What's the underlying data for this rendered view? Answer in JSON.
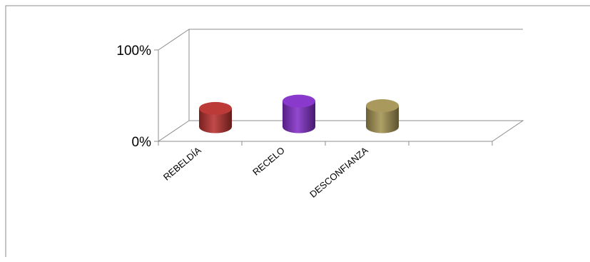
{
  "chart_data": {
    "type": "bar",
    "style": "3d-cylinder",
    "categories": [
      "REBELDÍA",
      "RECELO",
      "DESCONFIANZA",
      ""
    ],
    "values": [
      20,
      28,
      23,
      null
    ],
    "ylim": [
      0,
      100
    ],
    "yticks": [
      {
        "value": 0,
        "label": "0%"
      },
      {
        "value": 100,
        "label": "100%"
      }
    ],
    "colors": [
      "#b8312f",
      "#8330c9",
      "#a59453"
    ],
    "grid": true,
    "legend": "none"
  }
}
